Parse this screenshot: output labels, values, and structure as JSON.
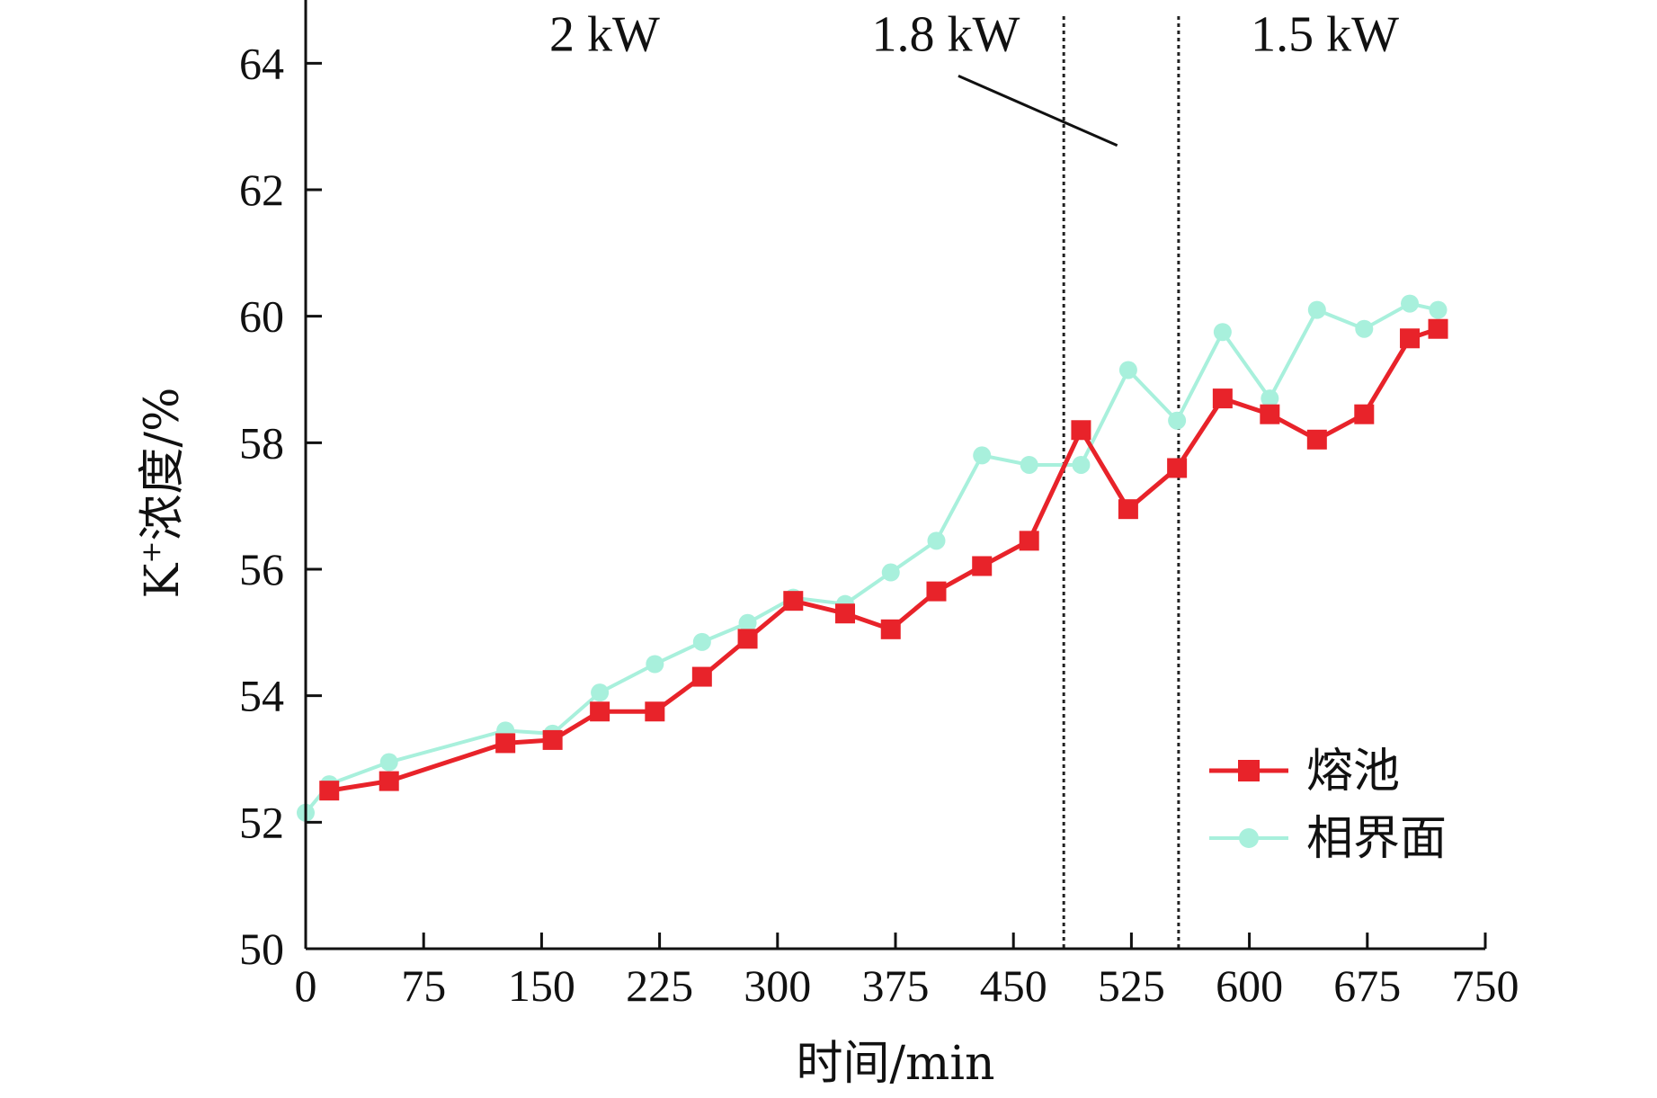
{
  "chart_data": {
    "type": "line",
    "xlabel": "时间/min",
    "ylabel_main": "K",
    "ylabel_sup": "+",
    "ylabel_rest": "浓度/%",
    "xlim": [
      0,
      750
    ],
    "ylim": [
      50,
      65
    ],
    "xticks": [
      0,
      75,
      150,
      225,
      300,
      375,
      450,
      525,
      600,
      675,
      750
    ],
    "yticks": [
      50,
      52,
      54,
      56,
      58,
      60,
      62,
      64
    ],
    "grid": false,
    "legend_position": "bottom-right",
    "phase_dividers": [
      482,
      555
    ],
    "annotations": [
      {
        "text": "2 kW",
        "x": 190,
        "y": 64.2
      },
      {
        "text": "1.8 kW",
        "x": 407,
        "y": 64.2
      },
      {
        "text": "1.5 kW",
        "x": 648,
        "y": 64.2
      }
    ],
    "pointer_line": {
      "x1": 415,
      "y1": 63.8,
      "x2": 516,
      "y2": 62.7
    },
    "series": [
      {
        "name": "熔池",
        "color": "#e8232a",
        "marker": "square",
        "x": [
          15,
          53,
          127,
          157,
          187,
          222,
          252,
          281,
          310,
          343,
          372,
          401,
          430,
          460,
          493,
          523,
          554,
          583,
          613,
          643,
          673,
          702,
          720
        ],
        "y": [
          52.5,
          52.65,
          53.25,
          53.3,
          53.75,
          53.75,
          54.3,
          54.9,
          55.5,
          55.3,
          55.05,
          55.65,
          56.05,
          56.45,
          58.2,
          56.95,
          57.6,
          58.7,
          58.45,
          58.05,
          58.45,
          59.65,
          59.8
        ]
      },
      {
        "name": "相界面",
        "color": "#a8f0dc",
        "marker": "circle",
        "x": [
          0,
          15,
          53,
          127,
          157,
          187,
          222,
          252,
          281,
          310,
          343,
          372,
          401,
          430,
          460,
          493,
          523,
          554,
          583,
          613,
          643,
          673,
          702,
          720
        ],
        "y": [
          52.15,
          52.6,
          52.95,
          53.45,
          53.4,
          54.05,
          54.5,
          54.85,
          55.15,
          55.55,
          55.45,
          55.95,
          56.45,
          57.8,
          57.65,
          57.65,
          59.15,
          58.35,
          59.75,
          58.7,
          60.1,
          59.8,
          60.2,
          60.1
        ]
      }
    ]
  }
}
